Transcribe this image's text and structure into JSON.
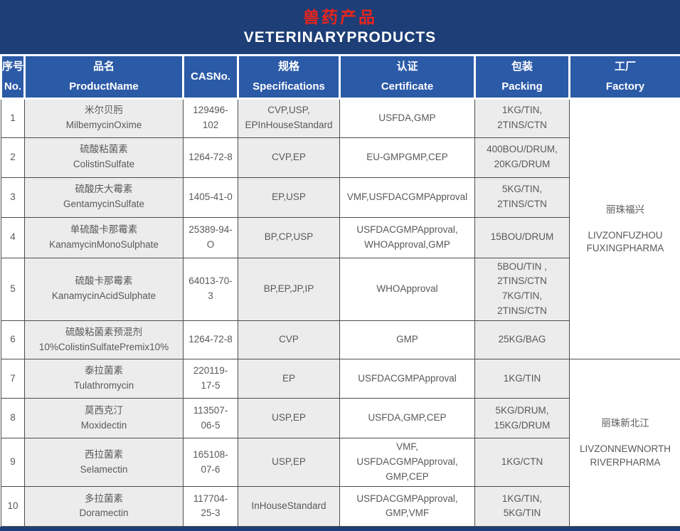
{
  "banner": {
    "title_zh": "兽药产品",
    "title_en": "VETERINARYPRODUCTS"
  },
  "colors": {
    "banner_bg": "#1d3e76",
    "header_cell_bg": "#2b5aa7",
    "title_zh_color": "#e8251d",
    "title_en_color": "#ffffff",
    "body_text": "#595959",
    "alt_cell_bg": "#ececec",
    "grid_line": "#4d4d4d"
  },
  "table": {
    "columns": [
      {
        "label": "序号\nNo."
      },
      {
        "label": "品名\nProductName"
      },
      {
        "label": "CASNo."
      },
      {
        "label": "规格\nSpecifications"
      },
      {
        "label": "认证\nCertificate"
      },
      {
        "label": "包装\nPacking"
      },
      {
        "label": "工厂\nFactory"
      }
    ],
    "rows": [
      {
        "no": "1",
        "name": "米尔贝肟\nMilbemycinOxime",
        "cas": "129496-\n102",
        "spec": "CVP,USP,\nEPInHouseStandard",
        "cert": "USFDA,GMP",
        "pack": "1KG/TIN,\n2TINS/CTN"
      },
      {
        "no": "2",
        "name": "硫酸粘菌素\nColistinSulfate",
        "cas": "1264-72-8",
        "spec": "CVP,EP",
        "cert": "EU-GMPGMP,CEP",
        "pack": "400BOU/DRUM,\n20KG/DRUM"
      },
      {
        "no": "3",
        "name": "硫酸庆大霉素\nGentamycinSulfate",
        "cas": "1405-41-0",
        "spec": "EP,USP",
        "cert": "VMF,USFDACGMPApproval",
        "pack": "5KG/TIN,\n2TINS/CTN"
      },
      {
        "no": "4",
        "name": "单硫酸卡那霉素\nKanamycinMonoSulphate",
        "cas": "25389-94-\nO",
        "spec": "BP,CP,USP",
        "cert": "USFDACGMPApproval,\nWHOApproval,GMP",
        "pack": "15BOU/DRUM"
      },
      {
        "no": "5",
        "name": "硫酸卡那霉素\nKanamycinAcidSulphate",
        "cas": "64013-70-\n3",
        "spec": "BP,EP,JP,IP",
        "cert": "WHOApproval",
        "pack": "5BOU/TIN ,\n2TINS/CTN\n7KG/TIN,\n2TINS/CTN"
      },
      {
        "no": "6",
        "name": "硫酸粘菌素预混剂\n10%ColistinSulfatePremix10%",
        "cas": "1264-72-8",
        "spec": "CVP",
        "cert": "GMP",
        "pack": "25KG/BAG"
      },
      {
        "no": "7",
        "name": "泰拉菌素\nTulathromycin",
        "cas": "220119-\n17-5",
        "spec": "EP",
        "cert": "USFDACGMPApproval",
        "pack": "1KG/TIN"
      },
      {
        "no": "8",
        "name": "莫西克汀\nMoxidectin",
        "cas": "113507-\n06-5",
        "spec": "USP,EP",
        "cert": "USFDA,GMP,CEP",
        "pack": "5KG/DRUM,\n15KG/DRUM"
      },
      {
        "no": "9",
        "name": "西拉菌素\nSelamectin",
        "cas": "165108-\n07-6",
        "spec": "USP,EP",
        "cert": "VMF,\nUSFDACGMPApproval,\nGMP,CEP",
        "pack": "1KG/CTN"
      },
      {
        "no": "10",
        "name": "多拉菌素\nDoramectin",
        "cas": "117704-\n25-3",
        "spec": "InHouseStandard",
        "cert": "USFDACGMPApproval,\nGMP,VMF",
        "pack": "1KG/TIN,\n5KG/TIN"
      }
    ],
    "factories": [
      {
        "zh": "丽珠福兴",
        "en": "LIVZONFUZHOU\nFUXINGPHARMA",
        "row_start": 1,
        "row_span": 6
      },
      {
        "zh": "丽珠新北江",
        "en": "LIVZONNEWNORTH\nRIVERPHARMA",
        "row_start": 7,
        "row_span": 4
      }
    ]
  }
}
